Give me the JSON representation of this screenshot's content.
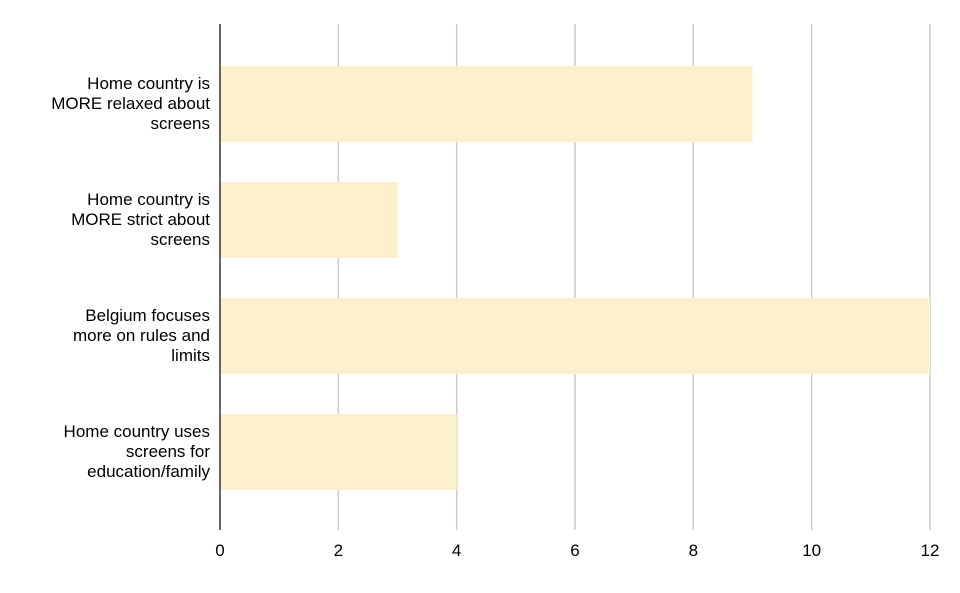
{
  "chart_data": {
    "type": "bar",
    "orientation": "horizontal",
    "categories": [
      "Home country is MORE relaxed about screens",
      "Home country is MORE strict about screens",
      "Belgium focuses more on rules and limits",
      "Home country uses screens for education/family"
    ],
    "category_lines": [
      [
        "Home country is",
        "MORE relaxed about",
        "screens"
      ],
      [
        "Home country is",
        "MORE strict about",
        "screens"
      ],
      [
        "Belgium focuses",
        "more on rules and",
        "limits"
      ],
      [
        "Home country uses",
        "screens for",
        "education/family"
      ]
    ],
    "values": [
      9,
      3,
      12,
      4
    ],
    "xlim": [
      0,
      12
    ],
    "xticks": [
      "0",
      "2",
      "4",
      "6",
      "8",
      "10",
      "12"
    ],
    "title": "",
    "xlabel": "",
    "ylabel": "",
    "grid": "vertical",
    "legend": "none",
    "colors": {
      "bar": "#fdf1cd",
      "grid": "#cccccc",
      "axis": "#333333"
    }
  }
}
